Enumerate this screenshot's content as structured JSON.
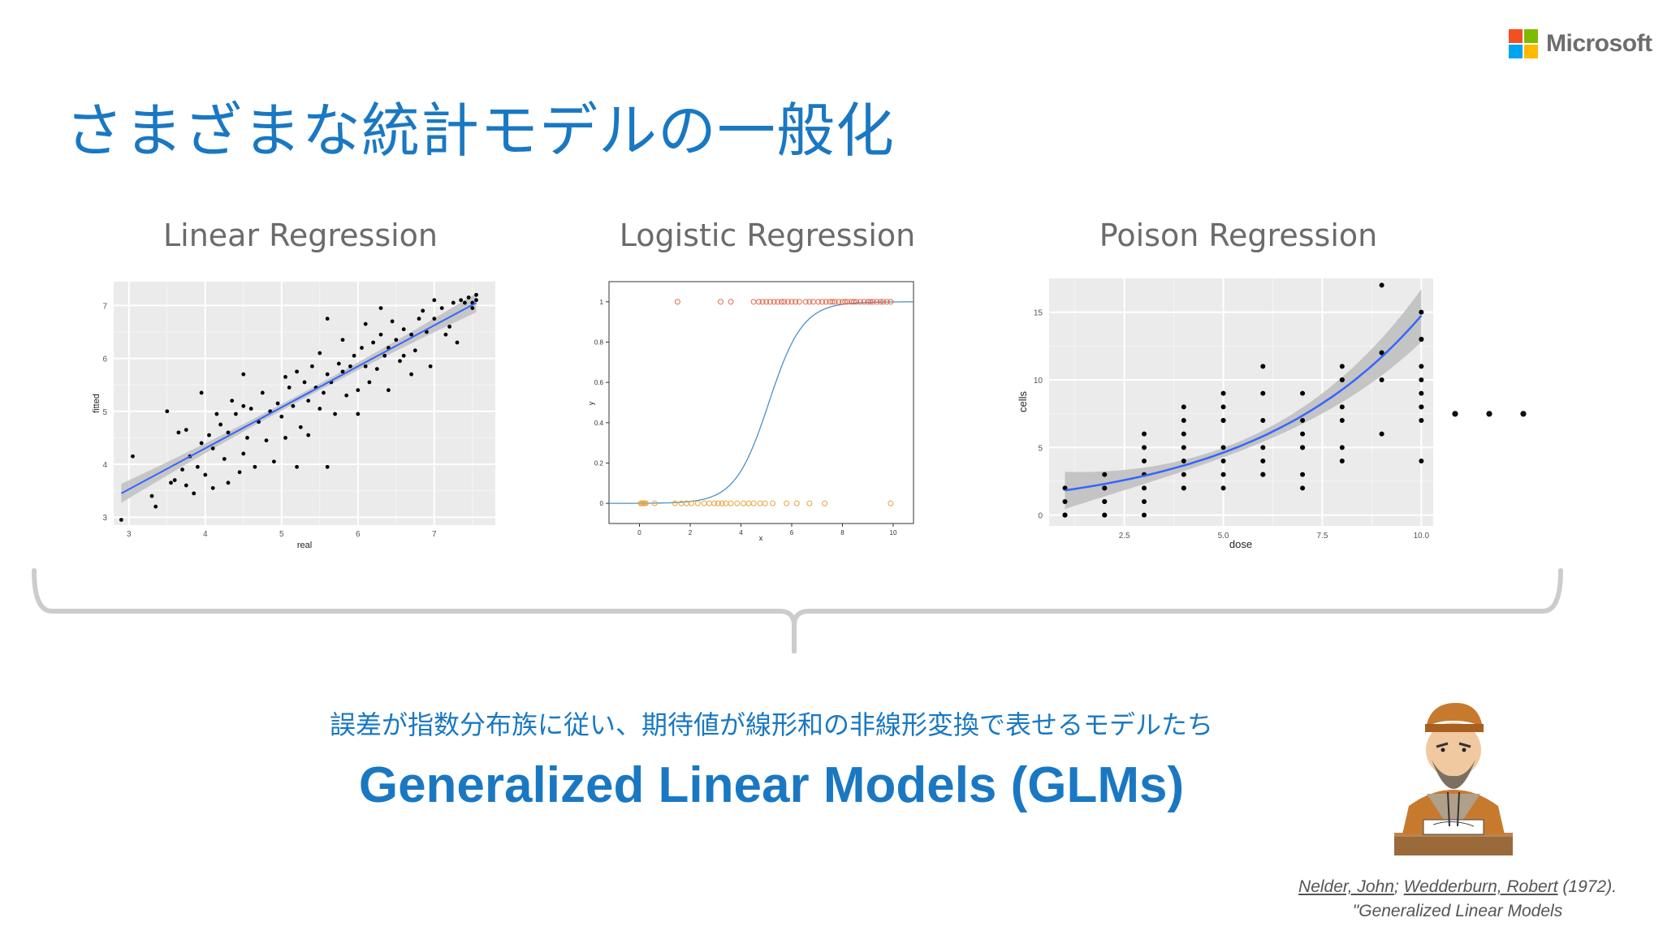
{
  "title": "さまざまな統計モデルの一般化",
  "logo": {
    "text": "Microsoft",
    "colors": [
      "#f25022",
      "#7fba00",
      "#00a4ef",
      "#ffb900"
    ]
  },
  "accent_color": "#1a78c2",
  "continuation": "・・・",
  "description": "誤差が指数分布族に従い、期待値が線形和の非線形変換で表せるモデルたち",
  "glm_label": "Generalized Linear Models (GLMs)",
  "citation": {
    "author1": "Nelder, John",
    "sep": ";",
    "author2": "Wedderburn, Robert",
    "year": "(1972).",
    "line2": "\"Generalized Linear Models"
  },
  "chart_data": [
    {
      "type": "scatter",
      "title": "Linear Regression",
      "xlabel": "real",
      "ylabel": "fitted",
      "xlim": [
        2.8,
        7.8
      ],
      "ylim": [
        2.85,
        7.45
      ],
      "xticks": [
        3,
        4,
        5,
        6,
        7
      ],
      "yticks": [
        3,
        4,
        5,
        6,
        7
      ],
      "grid": true,
      "fit_line": {
        "x": [
          2.9,
          7.55
        ],
        "y": [
          3.45,
          7.05
        ]
      },
      "points": [
        [
          2.9,
          2.95
        ],
        [
          3.05,
          4.15
        ],
        [
          3.3,
          3.4
        ],
        [
          3.35,
          3.2
        ],
        [
          3.5,
          5.0
        ],
        [
          3.55,
          3.65
        ],
        [
          3.6,
          3.7
        ],
        [
          3.65,
          4.6
        ],
        [
          3.7,
          3.9
        ],
        [
          3.75,
          4.65
        ],
        [
          3.75,
          3.6
        ],
        [
          3.8,
          4.15
        ],
        [
          3.85,
          3.45
        ],
        [
          3.9,
          3.95
        ],
        [
          3.95,
          4.4
        ],
        [
          3.95,
          5.35
        ],
        [
          4.0,
          3.8
        ],
        [
          4.05,
          4.55
        ],
        [
          4.1,
          4.3
        ],
        [
          4.1,
          3.55
        ],
        [
          4.15,
          4.95
        ],
        [
          4.2,
          4.75
        ],
        [
          4.25,
          4.1
        ],
        [
          4.3,
          4.6
        ],
        [
          4.3,
          3.65
        ],
        [
          4.35,
          5.2
        ],
        [
          4.4,
          4.95
        ],
        [
          4.45,
          3.85
        ],
        [
          4.5,
          5.1
        ],
        [
          4.5,
          4.2
        ],
        [
          4.5,
          5.7
        ],
        [
          4.55,
          4.5
        ],
        [
          4.6,
          5.05
        ],
        [
          4.65,
          3.95
        ],
        [
          4.7,
          4.8
        ],
        [
          4.75,
          5.35
        ],
        [
          4.8,
          4.45
        ],
        [
          4.85,
          5.0
        ],
        [
          4.9,
          4.05
        ],
        [
          4.95,
          5.15
        ],
        [
          5.0,
          4.9
        ],
        [
          5.05,
          4.5
        ],
        [
          5.05,
          5.65
        ],
        [
          5.1,
          5.45
        ],
        [
          5.15,
          5.1
        ],
        [
          5.2,
          5.75
        ],
        [
          5.2,
          3.95
        ],
        [
          5.25,
          4.7
        ],
        [
          5.3,
          5.55
        ],
        [
          5.35,
          5.2
        ],
        [
          5.35,
          4.55
        ],
        [
          5.4,
          5.85
        ],
        [
          5.45,
          5.45
        ],
        [
          5.5,
          5.05
        ],
        [
          5.5,
          6.1
        ],
        [
          5.55,
          5.35
        ],
        [
          5.6,
          3.95
        ],
        [
          5.6,
          5.7
        ],
        [
          5.6,
          6.75
        ],
        [
          5.65,
          5.55
        ],
        [
          5.7,
          4.95
        ],
        [
          5.75,
          5.9
        ],
        [
          5.8,
          5.75
        ],
        [
          5.8,
          6.35
        ],
        [
          5.85,
          5.3
        ],
        [
          5.9,
          5.85
        ],
        [
          5.95,
          6.05
        ],
        [
          6.0,
          5.4
        ],
        [
          6.0,
          4.95
        ],
        [
          6.05,
          6.2
        ],
        [
          6.1,
          5.85
        ],
        [
          6.1,
          6.65
        ],
        [
          6.15,
          5.55
        ],
        [
          6.2,
          6.3
        ],
        [
          6.25,
          5.8
        ],
        [
          6.3,
          6.45
        ],
        [
          6.3,
          6.95
        ],
        [
          6.35,
          6.05
        ],
        [
          6.4,
          6.2
        ],
        [
          6.4,
          5.4
        ],
        [
          6.45,
          6.7
        ],
        [
          6.5,
          6.35
        ],
        [
          6.55,
          5.95
        ],
        [
          6.6,
          6.05
        ],
        [
          6.6,
          6.55
        ],
        [
          6.7,
          6.45
        ],
        [
          6.7,
          5.7
        ],
        [
          6.75,
          6.15
        ],
        [
          6.8,
          6.75
        ],
        [
          6.85,
          6.9
        ],
        [
          6.9,
          6.5
        ],
        [
          6.95,
          5.85
        ],
        [
          7.0,
          6.75
        ],
        [
          7.0,
          7.1
        ],
        [
          7.1,
          6.95
        ],
        [
          7.15,
          6.45
        ],
        [
          7.2,
          6.6
        ],
        [
          7.25,
          7.05
        ],
        [
          7.3,
          6.3
        ],
        [
          7.35,
          7.1
        ],
        [
          7.4,
          7.05
        ],
        [
          7.45,
          7.15
        ],
        [
          7.5,
          7.05
        ],
        [
          7.5,
          6.95
        ],
        [
          7.55,
          7.2
        ],
        [
          7.55,
          7.1
        ]
      ]
    },
    {
      "type": "scatter",
      "title": "Logistic Regression",
      "xlabel": "x",
      "ylabel": "y",
      "xlim": [
        -1.2,
        10.8
      ],
      "ylim": [
        -0.1,
        1.1
      ],
      "xticks": [
        0,
        2,
        4,
        6,
        8,
        10
      ],
      "yticks": [
        0,
        0.2,
        0.4,
        0.6,
        0.8,
        1
      ],
      "grid": false,
      "curve": {
        "type": "logistic",
        "x0": 5.1,
        "k": 1.5
      },
      "ones": [
        1.5,
        3.2,
        3.6,
        4.5,
        4.7,
        4.85,
        5.0,
        5.15,
        5.3,
        5.45,
        5.6,
        5.7,
        5.85,
        6.0,
        6.15,
        6.3,
        6.55,
        6.7,
        6.85,
        7.05,
        7.2,
        7.35,
        7.5,
        7.6,
        7.7,
        7.85,
        8.0,
        8.1,
        8.2,
        8.35,
        8.45,
        8.55,
        8.7,
        8.85,
        9.0,
        9.1,
        9.2,
        9.35,
        9.5,
        9.6,
        9.75,
        9.9
      ],
      "zeros": [
        0.05,
        0.1,
        0.15,
        0.2,
        0.25,
        0.6,
        1.4,
        1.65,
        1.85,
        2.05,
        2.3,
        2.55,
        2.75,
        2.95,
        3.1,
        3.25,
        3.4,
        3.6,
        3.85,
        4.1,
        4.3,
        4.5,
        4.75,
        4.95,
        5.25,
        5.8,
        6.2,
        6.7,
        7.3,
        9.9
      ],
      "colors": {
        "ones": "#e0684a",
        "zeros": "#e8a33b",
        "curve": "#4f8fc4"
      }
    },
    {
      "type": "scatter",
      "title": "Poison Regression",
      "xlabel": "dose",
      "ylabel": "cells",
      "xlim": [
        0.6,
        10.3
      ],
      "ylim": [
        -0.8,
        17.5
      ],
      "xticks": [
        2.5,
        5.0,
        7.5,
        10.0
      ],
      "yticks": [
        0,
        5,
        10,
        15
      ],
      "xtick_labels": [
        "2.5",
        "5.0",
        "7.5",
        "10.0"
      ],
      "grid": true,
      "curve": {
        "type": "exponential",
        "a": 1.45,
        "b": 0.232
      },
      "points": [
        [
          1,
          0
        ],
        [
          1,
          0
        ],
        [
          1,
          1
        ],
        [
          1,
          2
        ],
        [
          1,
          0
        ],
        [
          2,
          0
        ],
        [
          2,
          1
        ],
        [
          2,
          2
        ],
        [
          2,
          3
        ],
        [
          2,
          1
        ],
        [
          2,
          0
        ],
        [
          2,
          2
        ],
        [
          3,
          1
        ],
        [
          3,
          2
        ],
        [
          3,
          3
        ],
        [
          3,
          4
        ],
        [
          3,
          5
        ],
        [
          3,
          6
        ],
        [
          3,
          0
        ],
        [
          4,
          2
        ],
        [
          4,
          3
        ],
        [
          4,
          4
        ],
        [
          4,
          5
        ],
        [
          4,
          6
        ],
        [
          4,
          7
        ],
        [
          4,
          8
        ],
        [
          4,
          2
        ],
        [
          5,
          2
        ],
        [
          5,
          3
        ],
        [
          5,
          4
        ],
        [
          5,
          5
        ],
        [
          5,
          7
        ],
        [
          5,
          8
        ],
        [
          5,
          9
        ],
        [
          5,
          7
        ],
        [
          6,
          3
        ],
        [
          6,
          4
        ],
        [
          6,
          5
        ],
        [
          6,
          7
        ],
        [
          6,
          9
        ],
        [
          6,
          11
        ],
        [
          6,
          3
        ],
        [
          7,
          2
        ],
        [
          7,
          3
        ],
        [
          7,
          5
        ],
        [
          7,
          6
        ],
        [
          7,
          7
        ],
        [
          7,
          9
        ],
        [
          7,
          5
        ],
        [
          8,
          4
        ],
        [
          8,
          5
        ],
        [
          8,
          7
        ],
        [
          8,
          8
        ],
        [
          8,
          10
        ],
        [
          8,
          11
        ],
        [
          8,
          10
        ],
        [
          9,
          6
        ],
        [
          9,
          10
        ],
        [
          9,
          12
        ],
        [
          9,
          17
        ],
        [
          9,
          12
        ],
        [
          10,
          4
        ],
        [
          10,
          7
        ],
        [
          10,
          8
        ],
        [
          10,
          9
        ],
        [
          10,
          10
        ],
        [
          10,
          11
        ],
        [
          10,
          13
        ],
        [
          10,
          15
        ],
        [
          10,
          13
        ],
        [
          10,
          8
        ]
      ]
    }
  ]
}
